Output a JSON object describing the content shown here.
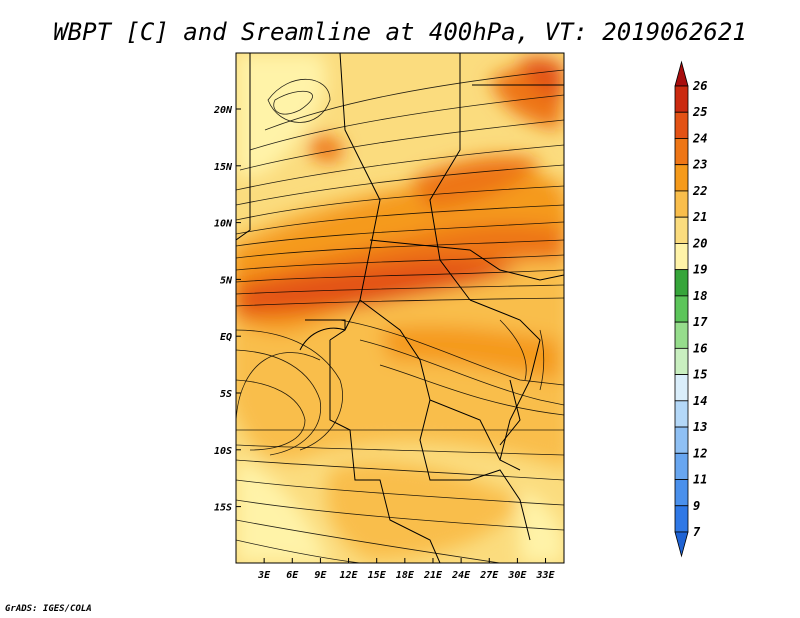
{
  "chart_data": {
    "type": "heatmap",
    "title": "WBPT [C] and Sreamline at 400hPa, VT: 2019062621",
    "x_ticks": [
      "3E",
      "6E",
      "9E",
      "12E",
      "15E",
      "18E",
      "21E",
      "24E",
      "27E",
      "30E",
      "33E"
    ],
    "y_ticks": [
      "20N",
      "15N",
      "10N",
      "5N",
      "EQ",
      "5S",
      "10S",
      "15S"
    ],
    "colorbar": {
      "labels": [
        "7",
        "9",
        "11",
        "12",
        "13",
        "14",
        "15",
        "16",
        "17",
        "18",
        "19",
        "20",
        "21",
        "22",
        "23",
        "24",
        "25",
        "26"
      ],
      "colors": [
        "#1f63d4",
        "#2f78e6",
        "#4a90ec",
        "#68a6f0",
        "#8fc0f4",
        "#b4d8f8",
        "#daeefb",
        "#c9efc0",
        "#96dd8c",
        "#5cc55a",
        "#36a53a",
        "#fff3a8",
        "#fbdc7e",
        "#f9be4c",
        "#f59a1b",
        "#ee7616",
        "#e35215",
        "#cb2a10",
        "#a80d0d"
      ],
      "extend": "both"
    },
    "xlim": [
      "0",
      "35E"
    ],
    "ylim": [
      "19S",
      "25N"
    ],
    "grid": false
  },
  "footer": {
    "credit": "GrADS: IGES/COLA"
  }
}
